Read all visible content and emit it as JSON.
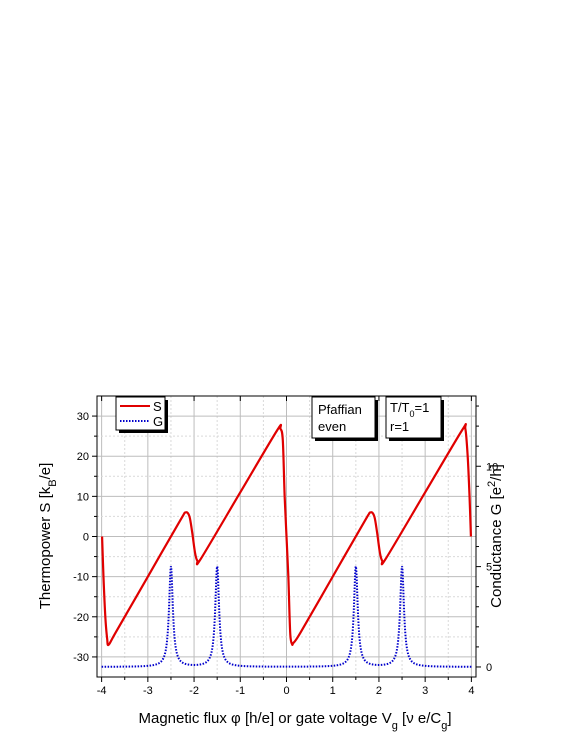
{
  "chart_data": {
    "type": "line",
    "xlabel": {
      "pre": "Magnetic flux ",
      "phi": "φ",
      "mid": " [h/e] or gate voltage V",
      "sub": "g",
      "mid2": " [",
      "nu": "ν",
      "post": " e/C",
      "sub2": "g",
      "end": "]"
    },
    "ylabel_left": {
      "pre": "Thermopower S [k",
      "sub": "B",
      "post": "/e]"
    },
    "ylabel_right": {
      "pre": "Conductance G [e",
      "sup": "2",
      "post": "/h]"
    },
    "xlim": [
      -4.1,
      4.1
    ],
    "ylim_left": [
      -35,
      35
    ],
    "ylim_right": [
      -0.5,
      13.5
    ],
    "x_ticks": [
      "-4",
      "-3",
      "-2",
      "-1",
      "0",
      "1",
      "2",
      "3",
      "4"
    ],
    "y_left_ticks": [
      "-30",
      "-20",
      "-10",
      "0",
      "10",
      "20",
      "30"
    ],
    "y_right_ticks": [
      "0",
      "5",
      "10"
    ],
    "grid": true,
    "legend": {
      "placement": "top-left",
      "items": [
        {
          "label": "S",
          "color": "#e00000",
          "style": "solid"
        },
        {
          "label": "G",
          "color": "#0000cc",
          "style": "dotted"
        }
      ]
    },
    "annotations": {
      "model": [
        "Pfaffian",
        "even"
      ],
      "temp_pre": "T/T",
      "temp_sub": "0",
      "temp_post": "=1",
      "r_line": "r=1"
    },
    "series": [
      {
        "name": "S",
        "axis": "left",
        "color": "#e00000",
        "x": [
          -3.99,
          -3.96,
          -3.92,
          -3.88,
          -3.85,
          -3.7,
          -3.0,
          -2.3,
          -2.18,
          -2.1,
          -2.04,
          -1.98,
          -1.93,
          -1.85,
          -1.0,
          -0.2,
          -0.13,
          -0.08,
          -0.04,
          0.0,
          0.04,
          0.08,
          0.12,
          0.15,
          0.3,
          1.0,
          1.7,
          1.82,
          1.9,
          1.96,
          2.02,
          2.07,
          2.15,
          3.0,
          3.8,
          3.87,
          3.92,
          3.96,
          3.99
        ],
        "y": [
          0,
          -10,
          -20,
          -25.5,
          -27,
          -24,
          -10,
          4,
          6,
          5,
          1,
          -4,
          -6,
          -5.5,
          11,
          26.5,
          26.8,
          24,
          10,
          0,
          -10,
          -24,
          -26.8,
          -26.5,
          -24,
          -10,
          4,
          6,
          5,
          1,
          -4,
          -6,
          -5.5,
          11,
          26.5,
          26.8,
          20,
          10,
          0
        ]
      },
      {
        "name": "G",
        "axis": "right",
        "color": "#0000cc",
        "peaks": [
          -2.5,
          -1.5,
          1.5,
          2.5
        ],
        "peak_height": 5.0,
        "peak_width": 0.05,
        "baseline": 0.0,
        "x_range": [
          -4.0,
          4.0
        ]
      }
    ]
  }
}
